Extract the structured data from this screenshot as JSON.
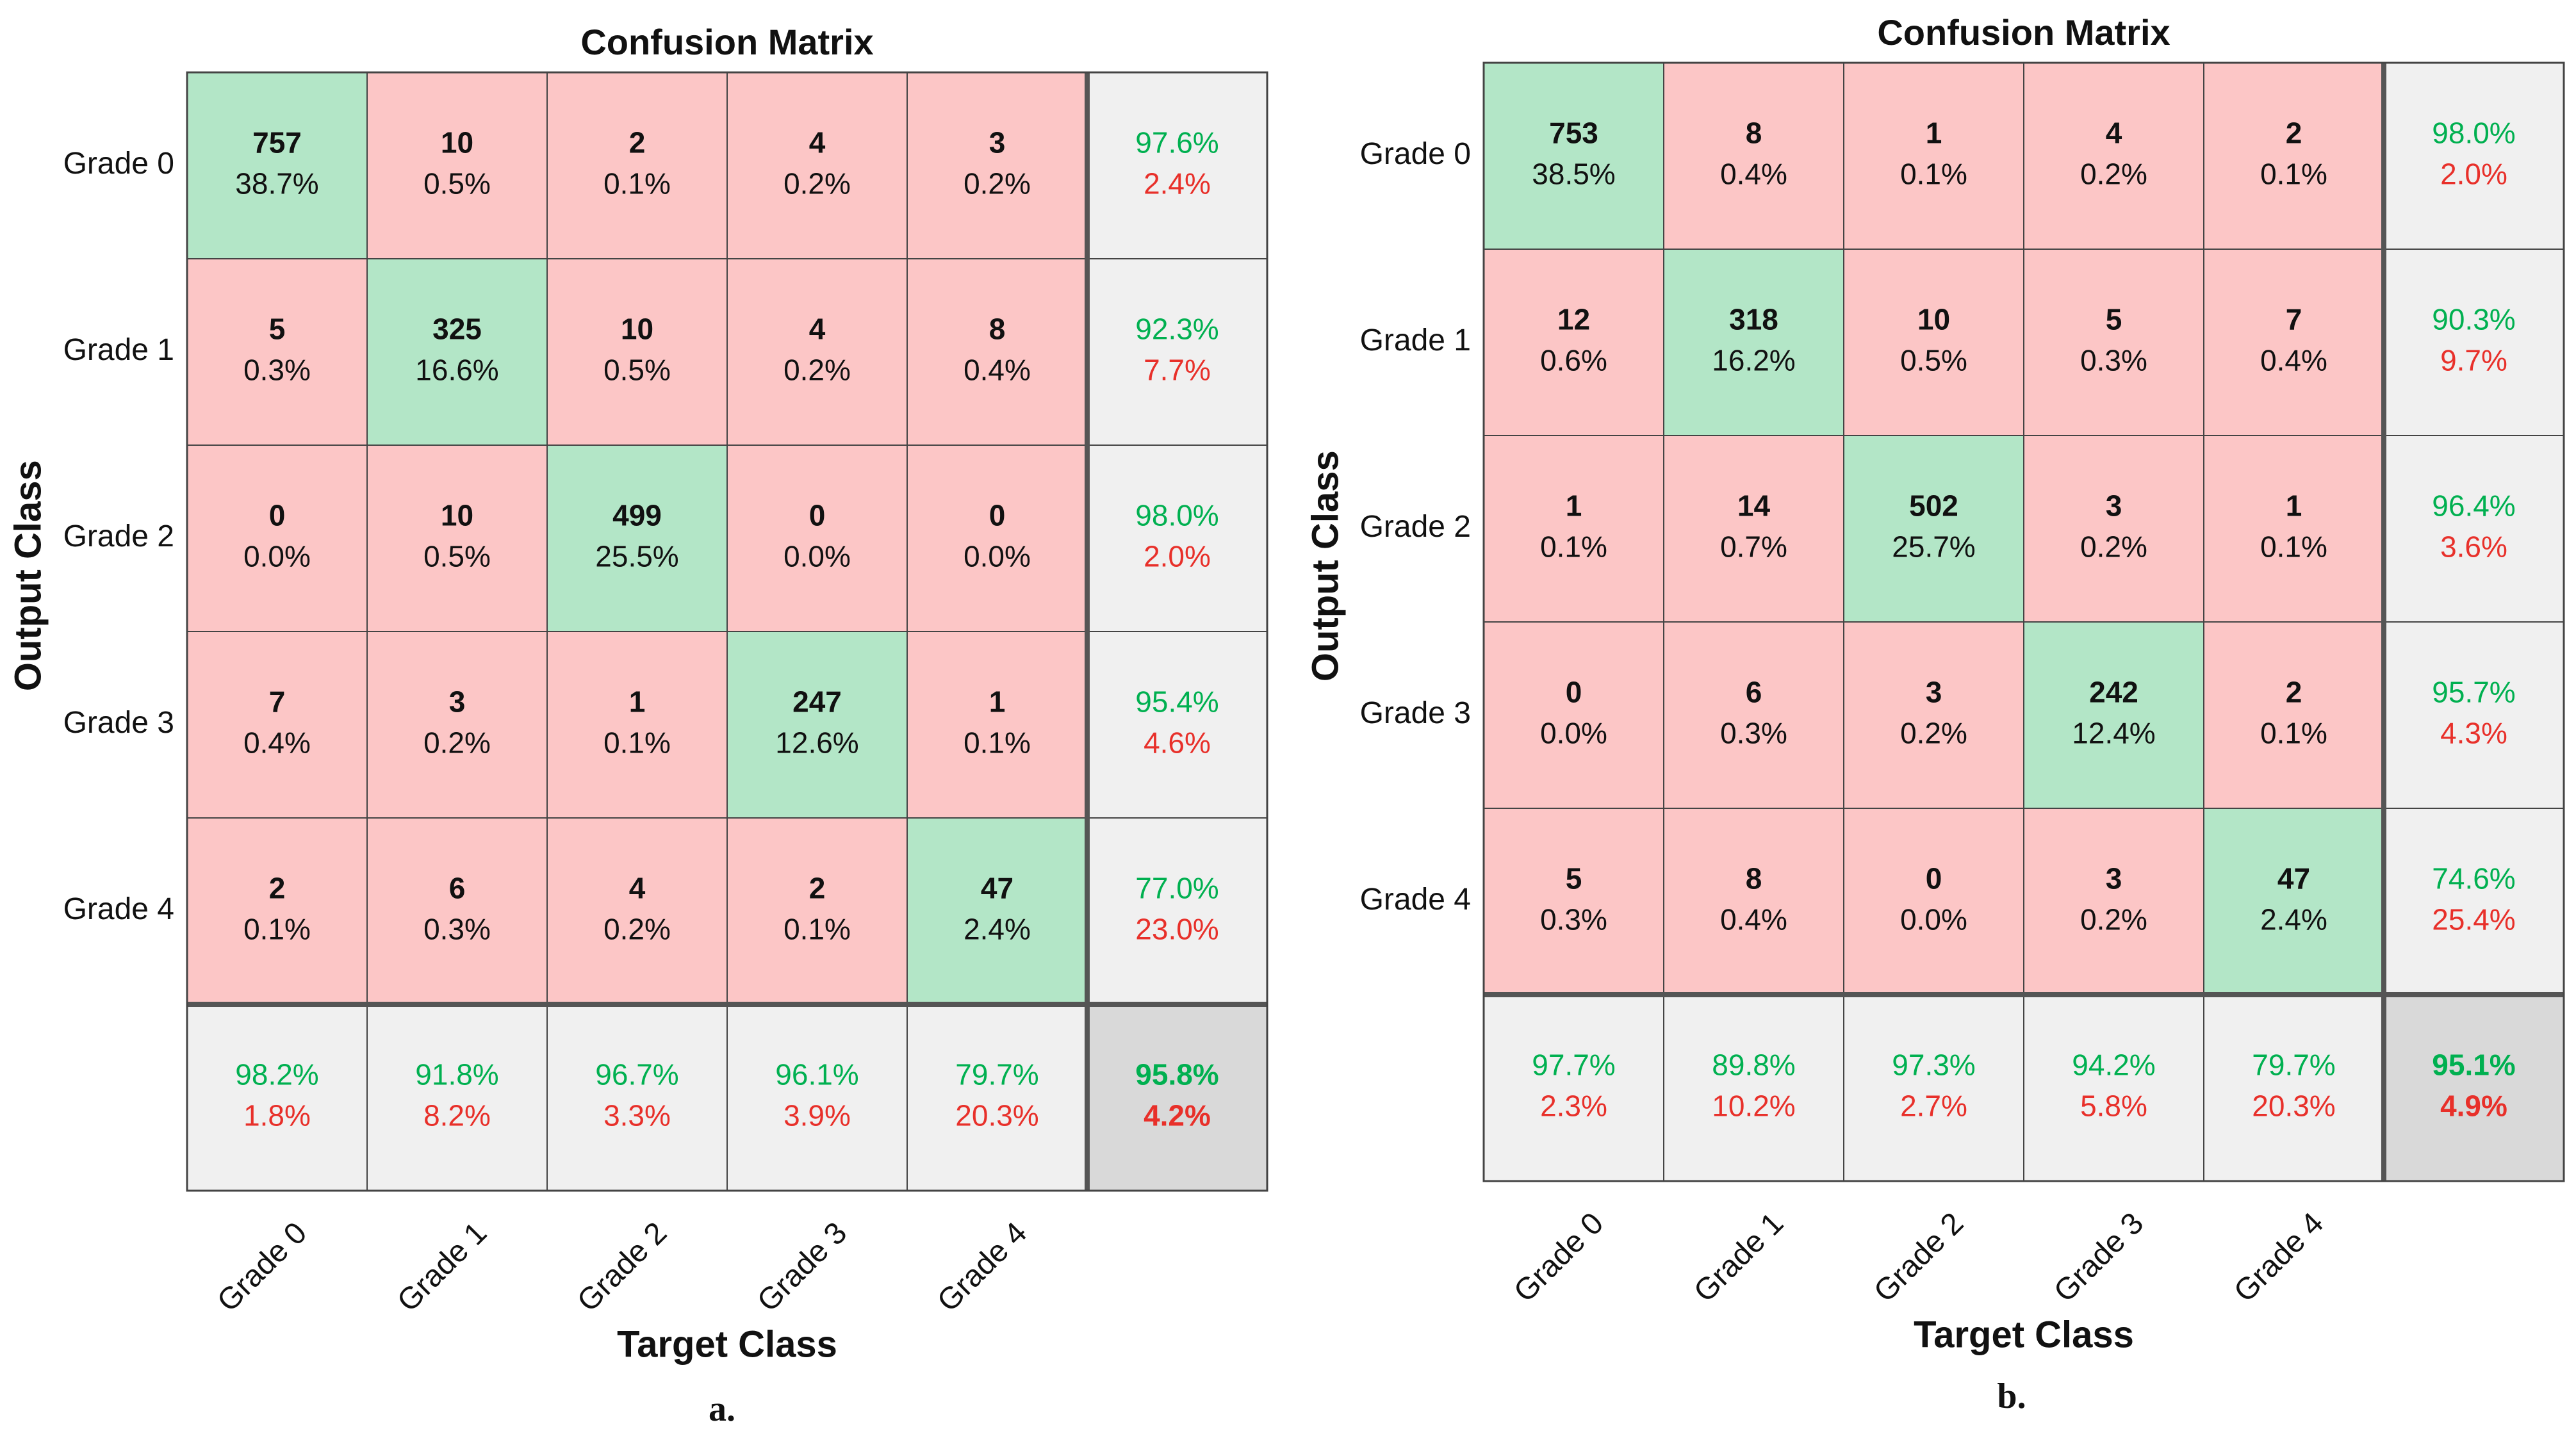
{
  "colors": {
    "diag": "#b3e6c7",
    "offdiag": "#fcc6c6",
    "summary": "#f0f0f0",
    "overall": "#d9d9d9",
    "green_text": "#00b050",
    "red_text": "#e8302a",
    "text": "#111111",
    "grid": "#444444",
    "thick": "#555555"
  },
  "chart_data": [
    {
      "type": "confusion-matrix",
      "title": "Confusion Matrix",
      "xlabel": "Target Class",
      "ylabel": "Output Class",
      "caption": "a.",
      "classes": [
        "Grade 0",
        "Grade 1",
        "Grade 2",
        "Grade 3",
        "Grade 4"
      ],
      "counts": [
        [
          757,
          10,
          2,
          4,
          3
        ],
        [
          5,
          325,
          10,
          4,
          8
        ],
        [
          0,
          10,
          499,
          0,
          0
        ],
        [
          7,
          3,
          1,
          247,
          1
        ],
        [
          2,
          6,
          4,
          2,
          47
        ]
      ],
      "percents": [
        [
          "38.7%",
          "0.5%",
          "0.1%",
          "0.2%",
          "0.2%"
        ],
        [
          "0.3%",
          "16.6%",
          "0.5%",
          "0.2%",
          "0.4%"
        ],
        [
          "0.0%",
          "0.5%",
          "25.5%",
          "0.0%",
          "0.0%"
        ],
        [
          "0.4%",
          "0.2%",
          "0.1%",
          "12.6%",
          "0.1%"
        ],
        [
          "0.1%",
          "0.3%",
          "0.2%",
          "0.1%",
          "2.4%"
        ]
      ],
      "row_summary": [
        [
          "97.6%",
          "2.4%"
        ],
        [
          "92.3%",
          "7.7%"
        ],
        [
          "98.0%",
          "2.0%"
        ],
        [
          "95.4%",
          "4.6%"
        ],
        [
          "77.0%",
          "23.0%"
        ]
      ],
      "col_summary": [
        [
          "98.2%",
          "1.8%"
        ],
        [
          "91.8%",
          "8.2%"
        ],
        [
          "96.7%",
          "3.3%"
        ],
        [
          "96.1%",
          "3.9%"
        ],
        [
          "79.7%",
          "20.3%"
        ]
      ],
      "overall": [
        "95.8%",
        "4.2%"
      ]
    },
    {
      "type": "confusion-matrix",
      "title": "Confusion Matrix",
      "xlabel": "Target Class",
      "ylabel": "Output Class",
      "caption": "b.",
      "classes": [
        "Grade 0",
        "Grade 1",
        "Grade 2",
        "Grade 3",
        "Grade 4"
      ],
      "counts": [
        [
          753,
          8,
          1,
          4,
          2
        ],
        [
          12,
          318,
          10,
          5,
          7
        ],
        [
          1,
          14,
          502,
          3,
          1
        ],
        [
          0,
          6,
          3,
          242,
          2
        ],
        [
          5,
          8,
          0,
          3,
          47
        ]
      ],
      "percents": [
        [
          "38.5%",
          "0.4%",
          "0.1%",
          "0.2%",
          "0.1%"
        ],
        [
          "0.6%",
          "16.2%",
          "0.5%",
          "0.3%",
          "0.4%"
        ],
        [
          "0.1%",
          "0.7%",
          "25.7%",
          "0.2%",
          "0.1%"
        ],
        [
          "0.0%",
          "0.3%",
          "0.2%",
          "12.4%",
          "0.1%"
        ],
        [
          "0.3%",
          "0.4%",
          "0.0%",
          "0.2%",
          "2.4%"
        ]
      ],
      "row_summary": [
        [
          "98.0%",
          "2.0%"
        ],
        [
          "90.3%",
          "9.7%"
        ],
        [
          "96.4%",
          "3.6%"
        ],
        [
          "95.7%",
          "4.3%"
        ],
        [
          "74.6%",
          "25.4%"
        ]
      ],
      "col_summary": [
        [
          "97.7%",
          "2.3%"
        ],
        [
          "89.8%",
          "10.2%"
        ],
        [
          "97.3%",
          "2.7%"
        ],
        [
          "94.2%",
          "5.8%"
        ],
        [
          "79.7%",
          "20.3%"
        ]
      ],
      "overall": [
        "95.1%",
        "4.9%"
      ]
    }
  ]
}
